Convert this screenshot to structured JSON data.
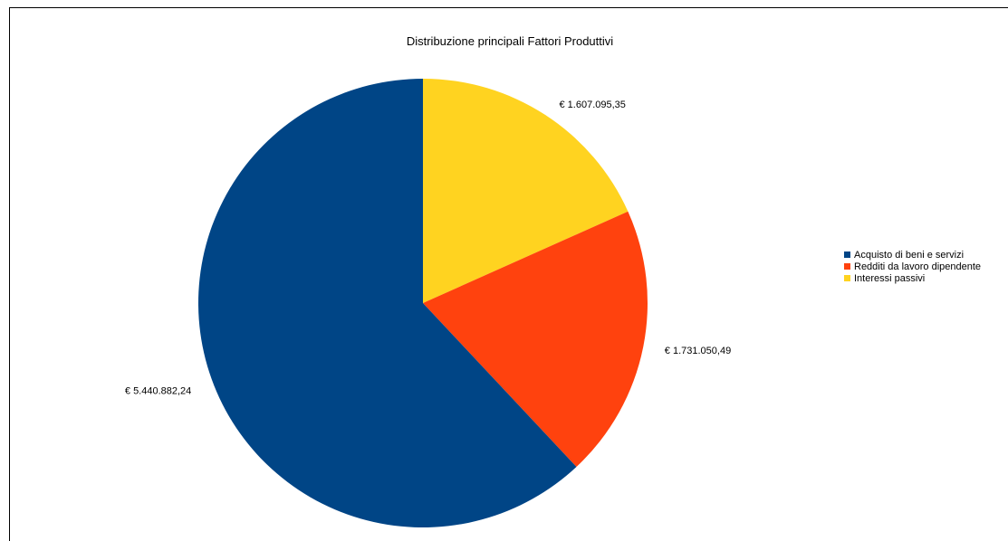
{
  "chart_data": {
    "type": "pie",
    "title": "Distribuzione principali Fattori Produttivi",
    "slices": [
      {
        "name": "Acquisto di beni e servizi",
        "value": 5440882.24,
        "label": "€ 5.440.882,24",
        "color": "#004586"
      },
      {
        "name": "Redditi da lavoro dipendente",
        "value": 1731050.49,
        "label": "€ 1.731.050,49",
        "color": "#ff420e"
      },
      {
        "name": "Interessi passivi",
        "value": 1607095.35,
        "label": "€ 1.607.095,35",
        "color": "#ffd320"
      }
    ],
    "legend_position": "right",
    "start": "top",
    "direction": "counterclockwise"
  }
}
